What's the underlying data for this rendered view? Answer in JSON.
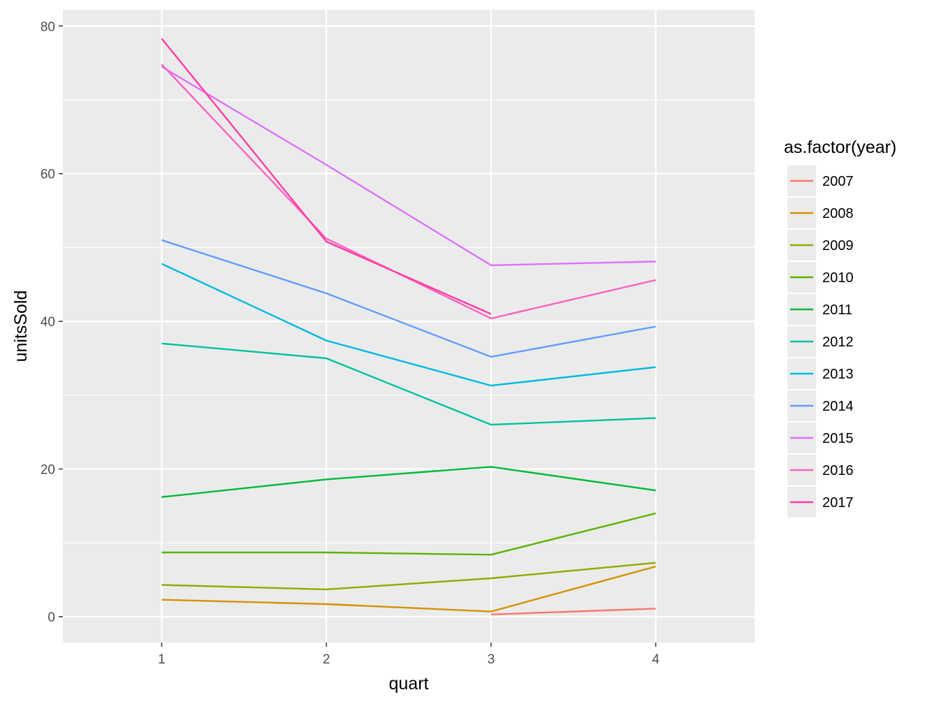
{
  "chart_data": {
    "type": "line",
    "xlabel": "quart",
    "ylabel": "unitsSold",
    "x_ticks": [
      "1",
      "2",
      "3",
      "4"
    ],
    "y_ticks": [
      "0",
      "20",
      "40",
      "60",
      "80"
    ],
    "xlim": [
      0.4,
      4.6
    ],
    "ylim": [
      -3.5,
      82.2
    ],
    "grid": true,
    "legend": {
      "title": "as.factor(year)",
      "position": "right"
    },
    "series": [
      {
        "name": "2007",
        "color": "#F8766D",
        "x": [
          3,
          4
        ],
        "y": [
          0.3,
          1.1
        ]
      },
      {
        "name": "2008",
        "color": "#D39200",
        "x": [
          1,
          2,
          3,
          4
        ],
        "y": [
          2.3,
          1.7,
          0.7,
          6.8
        ]
      },
      {
        "name": "2009",
        "color": "#93AA00",
        "x": [
          1,
          2,
          3,
          4
        ],
        "y": [
          4.3,
          3.7,
          5.2,
          7.3
        ]
      },
      {
        "name": "2010",
        "color": "#5BB300",
        "x": [
          1,
          2,
          3,
          4
        ],
        "y": [
          8.7,
          8.7,
          8.4,
          14.0
        ]
      },
      {
        "name": "2011",
        "color": "#00BA38",
        "x": [
          1,
          2,
          3,
          4
        ],
        "y": [
          16.2,
          18.6,
          20.3,
          17.1
        ]
      },
      {
        "name": "2012",
        "color": "#00C19F",
        "x": [
          1,
          2,
          3,
          4
        ],
        "y": [
          37.0,
          35.0,
          26.0,
          26.9
        ]
      },
      {
        "name": "2013",
        "color": "#00B9E3",
        "x": [
          1,
          2,
          3,
          4
        ],
        "y": [
          47.8,
          37.4,
          31.3,
          33.8
        ]
      },
      {
        "name": "2014",
        "color": "#619CFF",
        "x": [
          1,
          2,
          3,
          4
        ],
        "y": [
          51.0,
          43.8,
          35.2,
          39.3
        ]
      },
      {
        "name": "2015",
        "color": "#DB72FB",
        "x": [
          1,
          2,
          3,
          4
        ],
        "y": [
          74.5,
          61.2,
          47.6,
          48.1
        ]
      },
      {
        "name": "2016",
        "color": "#FF61C3",
        "x": [
          1,
          2,
          3,
          4
        ],
        "y": [
          74.8,
          51.2,
          40.4,
          45.6
        ]
      },
      {
        "name": "2017",
        "color": "#FF3DA0",
        "x": [
          1,
          2,
          3
        ],
        "y": [
          78.3,
          50.8,
          41.0
        ]
      }
    ]
  }
}
